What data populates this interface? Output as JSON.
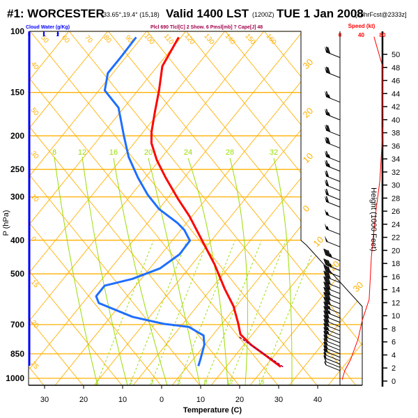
{
  "header": {
    "station": "#1: WORCESTER",
    "coords": "-33.65°,19.4° (15,18)",
    "valid": "Valid 1400 LST",
    "utc": "(1200Z)",
    "date": "TUE 1 Jan 2008",
    "forecast": "[18hrFcst@2333z]"
  },
  "chart_data": {
    "type": "line",
    "title": "#1: WORCESTER Valid 1400 LST TUE 1 Jan 2008",
    "xlabel": "Temperature (C)",
    "ylabel": "P (hPa)",
    "xlim": [
      -35,
      45
    ],
    "ylim": [
      1050,
      100
    ],
    "x_ticks": [
      "30",
      "20",
      "10",
      "0",
      "10",
      "20",
      "30",
      "40"
    ],
    "x_tick_values": [
      -30,
      -20,
      -10,
      0,
      10,
      20,
      30,
      40
    ],
    "y_ticks": [
      "100",
      "150",
      "200",
      "250",
      "300",
      "400",
      "500",
      "700",
      "850",
      "1000"
    ],
    "y_tick_values": [
      100,
      150,
      200,
      250,
      300,
      400,
      500,
      700,
      850,
      1000
    ],
    "indices_text": "Plcl 690 Tlcl[C] 2 Show. 6 Pmsl[mb] ? Cape[J] 48",
    "cloud_water": {
      "label": "Cloud Water (g/Kg)",
      "ticks": [
        "0",
        "1",
        "2"
      ],
      "values": [
        0,
        0
      ]
    },
    "theta_labels": [
      "50",
      "60",
      "70",
      "80",
      "90",
      "100",
      "110",
      "120",
      "130",
      "140",
      "150",
      "160"
    ],
    "isotherm_labels_left": [
      "40",
      "50",
      "30",
      "10",
      "0",
      "15",
      "20",
      "25"
    ],
    "isotherm_labels_right": [
      "30",
      "20",
      "10",
      "0",
      "10",
      "20",
      "30"
    ],
    "moist_adiabat_labels": [
      "8",
      "12",
      "16",
      "20",
      "24",
      "28",
      "32"
    ],
    "mixing_ratio_labels": [
      "1",
      "2",
      "3",
      "5",
      "8",
      "12",
      "16"
    ],
    "colors": {
      "temperature": "#ff0000",
      "dewpoint": "#1e6eff",
      "parcel": "#800060",
      "grid": "#ffb000",
      "moist": "#99dd00",
      "cloud": "#0000ff"
    },
    "series": [
      {
        "name": "Temperature",
        "p": [
          104,
          126,
          148,
          170,
          195,
          210,
          235,
          264,
          303,
          341,
          400,
          470,
          552,
          620,
          697,
          747,
          800,
          857,
          927
        ],
        "t": [
          -67.7,
          -65.9,
          -61.7,
          -58.4,
          -55.0,
          -52.7,
          -47.8,
          -41.9,
          -34.5,
          -27.8,
          -19.6,
          -11.3,
          -3.7,
          2.2,
          7.1,
          9.8,
          14.6,
          20.4,
          26.9
        ]
      },
      {
        "name": "Dewpoint",
        "p": [
          104,
          118,
          132,
          148,
          166,
          200,
          230,
          264,
          296,
          325,
          357,
          374,
          401,
          439,
          482,
          517,
          541,
          580,
          607,
          665,
          697,
          711,
          753,
          800,
          880,
          922
        ],
        "t": [
          -78.6,
          -78.4,
          -78.4,
          -75.6,
          -68.5,
          -61.3,
          -55.7,
          -49.0,
          -42.9,
          -37.1,
          -29.4,
          -26.2,
          -22.6,
          -22.4,
          -24.5,
          -29.4,
          -35.1,
          -35.1,
          -33.0,
          -21.5,
          -12.0,
          -5.0,
          0.6,
          2.7,
          4.7,
          5.6
        ]
      },
      {
        "name": "Parcel",
        "p": [
          927,
          880,
          840,
          800,
          760
        ],
        "t": [
          27.5,
          23.0,
          18.8,
          14.5,
          10.0
        ]
      }
    ],
    "wind": {
      "title": "Speed (kt)",
      "speed_ticks": [
        "0",
        "40",
        "80"
      ],
      "speed_tick_values": [
        0,
        40,
        80
      ],
      "height_label": "Height (1000 Feet)",
      "height_ticks": [
        "0",
        "2",
        "4",
        "6",
        "8",
        "10",
        "12",
        "14",
        "16",
        "18",
        "20",
        "22",
        "24",
        "26",
        "28",
        "30",
        "32",
        "34",
        "36",
        "38",
        "40",
        "42",
        "44",
        "46",
        "48",
        "50"
      ],
      "speed_profile": {
        "height_kft": [
          0.2,
          1.6,
          3.3,
          6.4,
          9.3,
          12.5,
          18.9,
          23.1,
          26.3,
          30.6,
          39.1,
          48.2,
          52.7
        ],
        "speed_kt": [
          4,
          9,
          20,
          34,
          42,
          55,
          59,
          64,
          68,
          75,
          81,
          80,
          64
        ]
      },
      "barbs": {
        "p": [
          119,
          136,
          160,
          180,
          200,
          217,
          238,
          253,
          271,
          288,
          306,
          321,
          350,
          385,
          418,
          458,
          489,
          510,
          530,
          550,
          570,
          590,
          610,
          630,
          650,
          670,
          690,
          710,
          730,
          750,
          770,
          790,
          810,
          830,
          850,
          870,
          890,
          910,
          930,
          950
        ],
        "speed_kt": [
          70,
          70,
          65,
          65,
          70,
          70,
          65,
          65,
          60,
          60,
          60,
          60,
          55,
          55,
          50,
          45,
          45,
          40,
          40,
          40,
          40,
          40,
          40,
          40,
          35,
          35,
          30,
          30,
          30,
          25,
          25,
          20,
          20,
          15,
          15,
          15,
          10,
          10,
          10,
          5
        ]
      }
    }
  }
}
